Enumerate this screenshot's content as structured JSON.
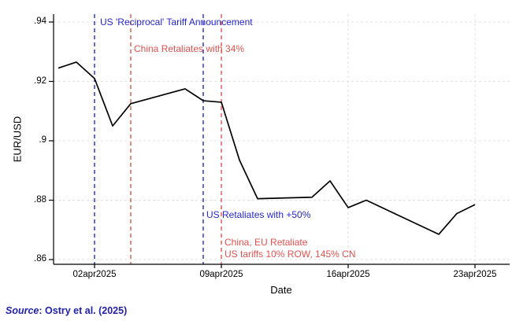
{
  "chart_data": {
    "type": "line",
    "title": "",
    "xlabel": "Date",
    "ylabel": "EUR/USD",
    "ylim": [
      0.86,
      0.94
    ],
    "grid": true,
    "legend": "none",
    "y_ticks": [
      {
        "label": ".94",
        "value": 0.94
      },
      {
        "label": ".92",
        "value": 0.92
      },
      {
        "label": ".9",
        "value": 0.9
      },
      {
        "label": ".88",
        "value": 0.88
      },
      {
        "label": ".86",
        "value": 0.86
      }
    ],
    "x_ticks": [
      {
        "label": "02apr2025",
        "day": 0,
        "gridline": false
      },
      {
        "label": "09apr2025",
        "day": 7,
        "gridline": false
      },
      {
        "label": "16apr2025",
        "day": 14,
        "gridline": true
      },
      {
        "label": "23apr2025",
        "day": 21,
        "gridline": true
      }
    ],
    "series": [
      {
        "name": "EUR/USD",
        "color": "#000000",
        "points": [
          {
            "date": "31mar2025",
            "day": -2,
            "value": 0.9245
          },
          {
            "date": "01apr2025",
            "day": -1,
            "value": 0.9265
          },
          {
            "date": "02apr2025",
            "day": 0,
            "value": 0.921
          },
          {
            "date": "03apr2025",
            "day": 1,
            "value": 0.905
          },
          {
            "date": "04apr2025",
            "day": 2,
            "value": 0.9125
          },
          {
            "date": "07apr2025",
            "day": 5,
            "value": 0.9175
          },
          {
            "date": "08apr2025",
            "day": 6,
            "value": 0.9135
          },
          {
            "date": "09apr2025",
            "day": 7,
            "value": 0.913
          },
          {
            "date": "10apr2025",
            "day": 8,
            "value": 0.8935
          },
          {
            "date": "11apr2025",
            "day": 9,
            "value": 0.8805
          },
          {
            "date": "14apr2025",
            "day": 12,
            "value": 0.881
          },
          {
            "date": "15apr2025",
            "day": 13,
            "value": 0.8865
          },
          {
            "date": "16apr2025",
            "day": 14,
            "value": 0.8775
          },
          {
            "date": "17apr2025",
            "day": 15,
            "value": 0.88
          },
          {
            "date": "21apr2025",
            "day": 19,
            "value": 0.8685
          },
          {
            "date": "22apr2025",
            "day": 20,
            "value": 0.8755
          },
          {
            "date": "23apr2025",
            "day": 21,
            "value": 0.8785
          }
        ]
      }
    ],
    "events": [
      {
        "day": 0,
        "date": "02apr2025",
        "color": "#2727cf",
        "label": "US 'Reciprocal' Tariff Announcement"
      },
      {
        "day": 2,
        "date": "04apr2025",
        "color": "#e0524f",
        "label": "China Retaliates with 34%"
      },
      {
        "day": 6,
        "date": "08apr2025",
        "color": "#2727cf",
        "label": "US Retaliates with +50%"
      },
      {
        "day": 7,
        "date": "09apr2025",
        "color": "#e0524f",
        "label": "China, EU Retaliate",
        "label2": "US tariffs 10% ROW, 145% CN"
      }
    ]
  },
  "axes": {
    "y_title": "EUR/USD",
    "x_title": "Date"
  },
  "source": {
    "prefix": "Source",
    "rest": ": Ostry et al. (2025)"
  },
  "colors": {
    "blue": "#2727cf",
    "red": "#e0524f",
    "grid": "#e1e1e1",
    "axis": "#000000",
    "line": "#000000",
    "source_navy": "#2222a8"
  }
}
